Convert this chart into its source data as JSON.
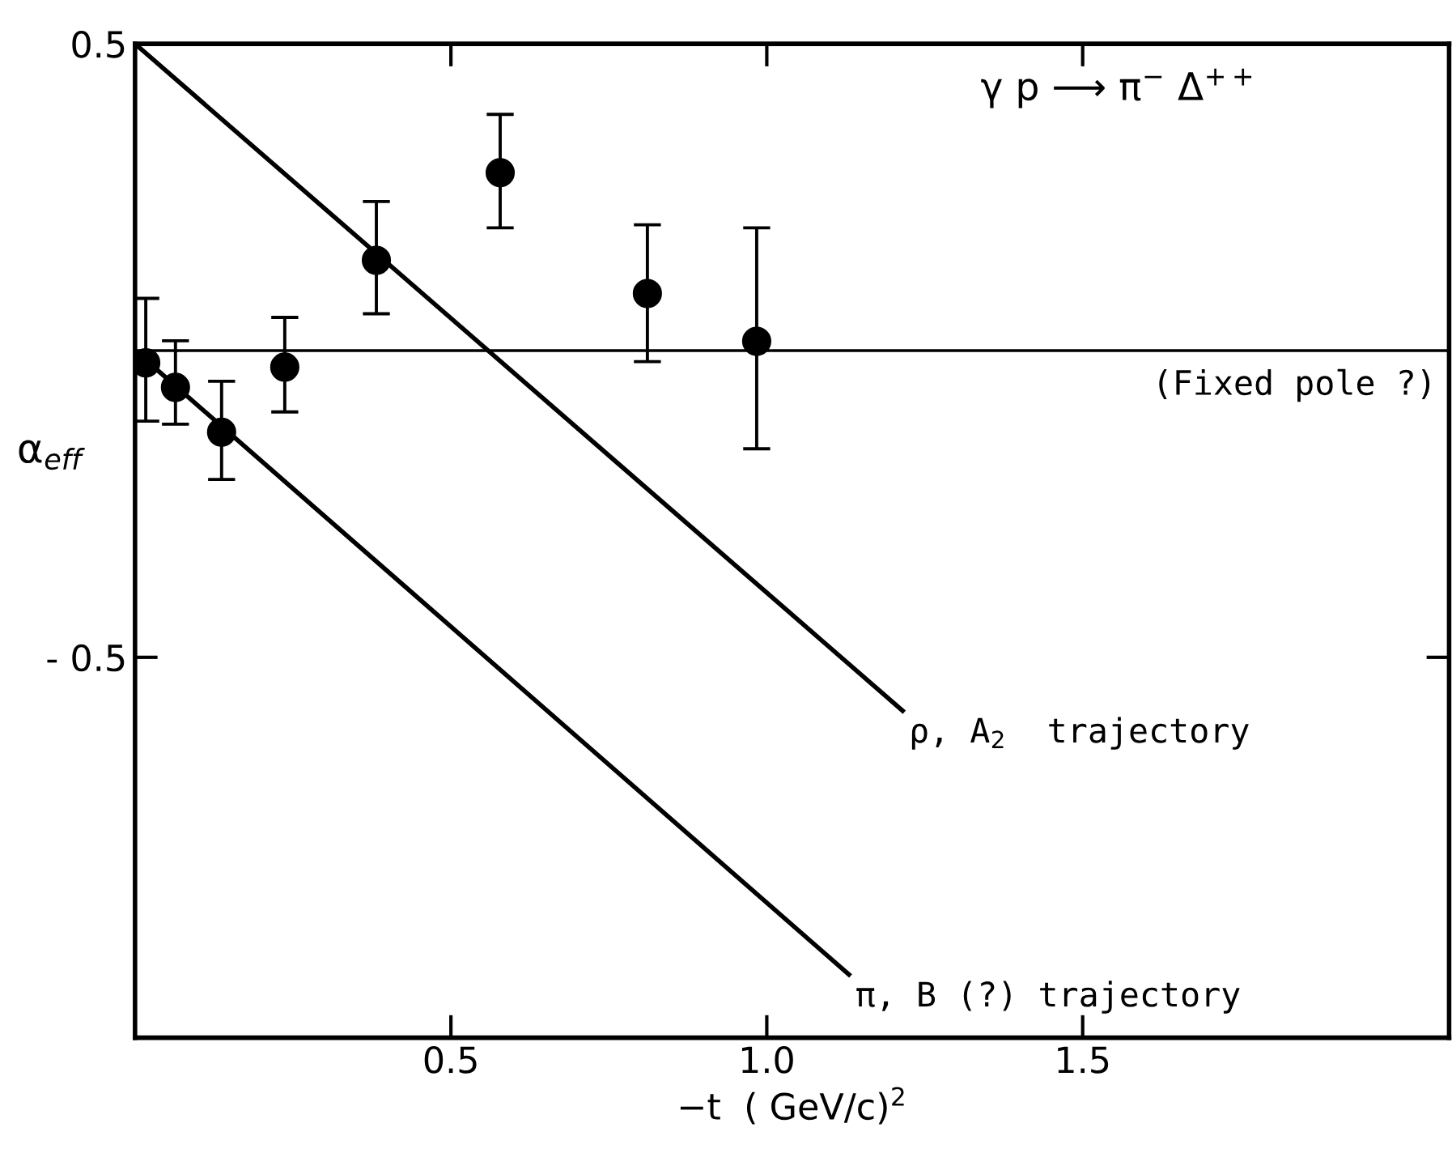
{
  "chart_data": {
    "type": "scatter",
    "xlabel": "−t  ( GeV/c)$^{2}$",
    "ylabel": "α$_{eff}$",
    "xlim": [
      0,
      2.08
    ],
    "ylim": [
      -1.12,
      0.5
    ],
    "xticks": [
      0.5,
      {
        "value": 1.0,
        "label": "1.0"
      },
      1.5
    ],
    "yticks": [
      0.5,
      {
        "value": -0.5,
        "label": "- 0.5"
      }
    ],
    "grid": false,
    "legend": false,
    "series": [
      {
        "color": "#000000",
        "marker": "circle",
        "x": [
          0.017,
          0.064,
          0.137,
          0.237,
          0.382,
          0.578,
          0.811,
          0.984
        ],
        "values": [
          -0.02,
          -0.06,
          -0.133,
          -0.027,
          0.147,
          0.29,
          0.093,
          0.015
        ],
        "errors": [
          [
            -0.115,
            0.085
          ],
          [
            -0.12,
            0.016
          ],
          [
            -0.21,
            -0.05
          ],
          [
            -0.1,
            0.054
          ],
          [
            0.06,
            0.243
          ],
          [
            0.2,
            0.385
          ],
          [
            -0.018,
            0.205
          ],
          [
            -0.16,
            0.2
          ]
        ]
      },
      {
        "type": "line",
        "name": "ρ, A$_{2}$  trajectory",
        "color": "#000000",
        "x": [
          0,
          1.215
        ],
        "values": [
          0.5,
          -0.587
        ]
      },
      {
        "type": "line",
        "name": "π, B (?) trajectory",
        "color": "#000000",
        "x": [
          0,
          1.13
        ],
        "values": [
          0,
          -1.017
        ]
      }
    ],
    "ref_lines": [
      {
        "axis": "y",
        "value": 0,
        "label": "(Fixed pole ?)",
        "color": "#000000"
      }
    ],
    "annotations": [
      "γ p ⟶ π$^{−}$ Δ$^{++}$"
    ]
  }
}
